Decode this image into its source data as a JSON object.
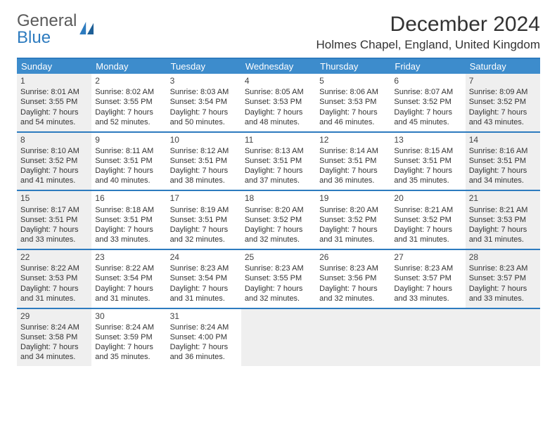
{
  "logo": {
    "text1": "General",
    "text2": "Blue"
  },
  "title": "December 2024",
  "location": "Holmes Chapel, England, United Kingdom",
  "styling": {
    "header_blue": "#2d7bbf",
    "weekday_bg": "#3d8ccc",
    "weekday_fg": "#ffffff",
    "shade_bg": "#efefef",
    "day_bg": "#ffffff",
    "text_color": "#333333",
    "logo_gray": "#5a5a5a",
    "month_title_fontsize": 30,
    "location_fontsize": 17,
    "weekday_fontsize": 13,
    "daynum_fontsize": 12,
    "info_fontsize": 11
  },
  "weekdays": [
    "Sunday",
    "Monday",
    "Tuesday",
    "Wednesday",
    "Thursday",
    "Friday",
    "Saturday"
  ],
  "shade_pattern": [
    true,
    false,
    false,
    false,
    false,
    false,
    true
  ],
  "weeks": [
    [
      {
        "n": "1",
        "sr": "Sunrise: 8:01 AM",
        "ss": "Sunset: 3:55 PM",
        "dl": "Daylight: 7 hours and 54 minutes."
      },
      {
        "n": "2",
        "sr": "Sunrise: 8:02 AM",
        "ss": "Sunset: 3:55 PM",
        "dl": "Daylight: 7 hours and 52 minutes."
      },
      {
        "n": "3",
        "sr": "Sunrise: 8:03 AM",
        "ss": "Sunset: 3:54 PM",
        "dl": "Daylight: 7 hours and 50 minutes."
      },
      {
        "n": "4",
        "sr": "Sunrise: 8:05 AM",
        "ss": "Sunset: 3:53 PM",
        "dl": "Daylight: 7 hours and 48 minutes."
      },
      {
        "n": "5",
        "sr": "Sunrise: 8:06 AM",
        "ss": "Sunset: 3:53 PM",
        "dl": "Daylight: 7 hours and 46 minutes."
      },
      {
        "n": "6",
        "sr": "Sunrise: 8:07 AM",
        "ss": "Sunset: 3:52 PM",
        "dl": "Daylight: 7 hours and 45 minutes."
      },
      {
        "n": "7",
        "sr": "Sunrise: 8:09 AM",
        "ss": "Sunset: 3:52 PM",
        "dl": "Daylight: 7 hours and 43 minutes."
      }
    ],
    [
      {
        "n": "8",
        "sr": "Sunrise: 8:10 AM",
        "ss": "Sunset: 3:52 PM",
        "dl": "Daylight: 7 hours and 41 minutes."
      },
      {
        "n": "9",
        "sr": "Sunrise: 8:11 AM",
        "ss": "Sunset: 3:51 PM",
        "dl": "Daylight: 7 hours and 40 minutes."
      },
      {
        "n": "10",
        "sr": "Sunrise: 8:12 AM",
        "ss": "Sunset: 3:51 PM",
        "dl": "Daylight: 7 hours and 38 minutes."
      },
      {
        "n": "11",
        "sr": "Sunrise: 8:13 AM",
        "ss": "Sunset: 3:51 PM",
        "dl": "Daylight: 7 hours and 37 minutes."
      },
      {
        "n": "12",
        "sr": "Sunrise: 8:14 AM",
        "ss": "Sunset: 3:51 PM",
        "dl": "Daylight: 7 hours and 36 minutes."
      },
      {
        "n": "13",
        "sr": "Sunrise: 8:15 AM",
        "ss": "Sunset: 3:51 PM",
        "dl": "Daylight: 7 hours and 35 minutes."
      },
      {
        "n": "14",
        "sr": "Sunrise: 8:16 AM",
        "ss": "Sunset: 3:51 PM",
        "dl": "Daylight: 7 hours and 34 minutes."
      }
    ],
    [
      {
        "n": "15",
        "sr": "Sunrise: 8:17 AM",
        "ss": "Sunset: 3:51 PM",
        "dl": "Daylight: 7 hours and 33 minutes."
      },
      {
        "n": "16",
        "sr": "Sunrise: 8:18 AM",
        "ss": "Sunset: 3:51 PM",
        "dl": "Daylight: 7 hours and 33 minutes."
      },
      {
        "n": "17",
        "sr": "Sunrise: 8:19 AM",
        "ss": "Sunset: 3:51 PM",
        "dl": "Daylight: 7 hours and 32 minutes."
      },
      {
        "n": "18",
        "sr": "Sunrise: 8:20 AM",
        "ss": "Sunset: 3:52 PM",
        "dl": "Daylight: 7 hours and 32 minutes."
      },
      {
        "n": "19",
        "sr": "Sunrise: 8:20 AM",
        "ss": "Sunset: 3:52 PM",
        "dl": "Daylight: 7 hours and 31 minutes."
      },
      {
        "n": "20",
        "sr": "Sunrise: 8:21 AM",
        "ss": "Sunset: 3:52 PM",
        "dl": "Daylight: 7 hours and 31 minutes."
      },
      {
        "n": "21",
        "sr": "Sunrise: 8:21 AM",
        "ss": "Sunset: 3:53 PM",
        "dl": "Daylight: 7 hours and 31 minutes."
      }
    ],
    [
      {
        "n": "22",
        "sr": "Sunrise: 8:22 AM",
        "ss": "Sunset: 3:53 PM",
        "dl": "Daylight: 7 hours and 31 minutes."
      },
      {
        "n": "23",
        "sr": "Sunrise: 8:22 AM",
        "ss": "Sunset: 3:54 PM",
        "dl": "Daylight: 7 hours and 31 minutes."
      },
      {
        "n": "24",
        "sr": "Sunrise: 8:23 AM",
        "ss": "Sunset: 3:54 PM",
        "dl": "Daylight: 7 hours and 31 minutes."
      },
      {
        "n": "25",
        "sr": "Sunrise: 8:23 AM",
        "ss": "Sunset: 3:55 PM",
        "dl": "Daylight: 7 hours and 32 minutes."
      },
      {
        "n": "26",
        "sr": "Sunrise: 8:23 AM",
        "ss": "Sunset: 3:56 PM",
        "dl": "Daylight: 7 hours and 32 minutes."
      },
      {
        "n": "27",
        "sr": "Sunrise: 8:23 AM",
        "ss": "Sunset: 3:57 PM",
        "dl": "Daylight: 7 hours and 33 minutes."
      },
      {
        "n": "28",
        "sr": "Sunrise: 8:23 AM",
        "ss": "Sunset: 3:57 PM",
        "dl": "Daylight: 7 hours and 33 minutes."
      }
    ],
    [
      {
        "n": "29",
        "sr": "Sunrise: 8:24 AM",
        "ss": "Sunset: 3:58 PM",
        "dl": "Daylight: 7 hours and 34 minutes."
      },
      {
        "n": "30",
        "sr": "Sunrise: 8:24 AM",
        "ss": "Sunset: 3:59 PM",
        "dl": "Daylight: 7 hours and 35 minutes."
      },
      {
        "n": "31",
        "sr": "Sunrise: 8:24 AM",
        "ss": "Sunset: 4:00 PM",
        "dl": "Daylight: 7 hours and 36 minutes."
      },
      null,
      null,
      null,
      null
    ]
  ]
}
